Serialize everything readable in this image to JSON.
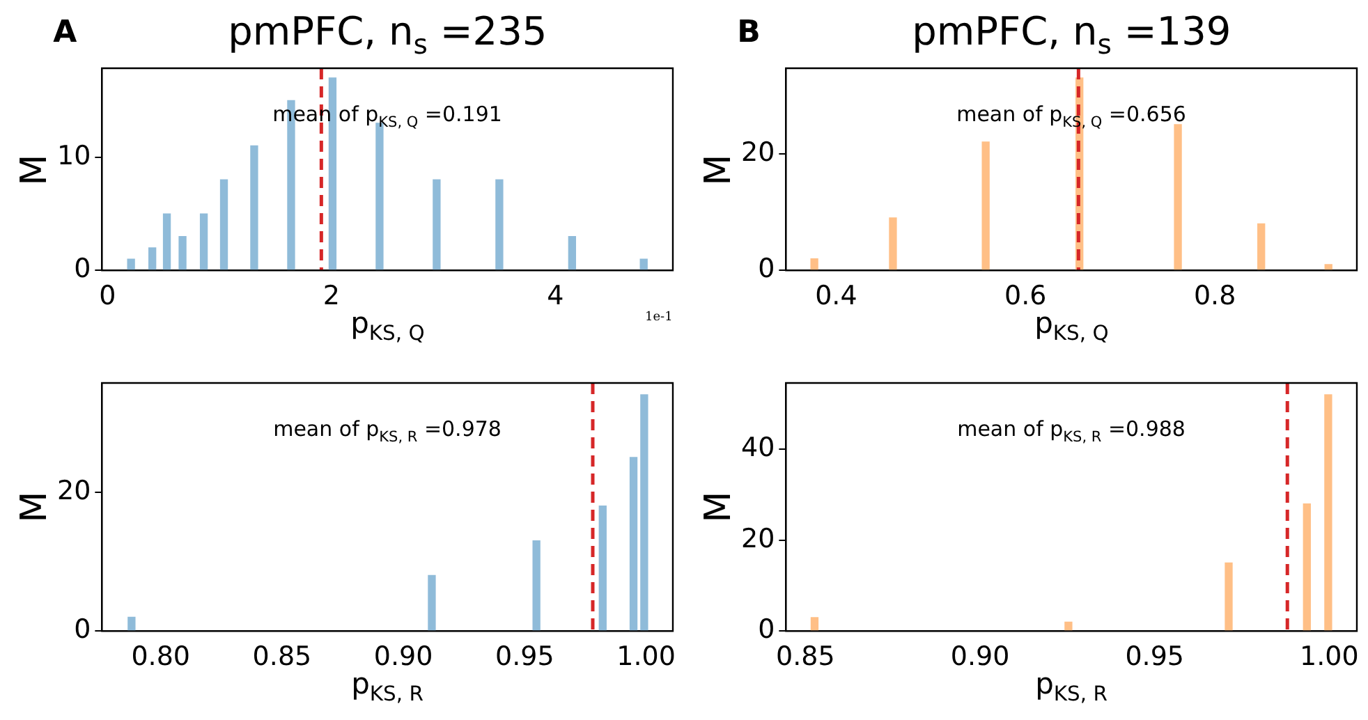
{
  "chart_data": [
    {
      "type": "bar",
      "title": "pmPFC, n$_{s}$ =235",
      "xlabel": "p$_{KS, Q}$",
      "ylabel": "M",
      "annotations": [
        "mean of p$_{KS, Q}$ =0.191",
        "A",
        "1e-1"
      ],
      "x": [
        0.21,
        0.4,
        0.53,
        0.67,
        0.86,
        1.04,
        1.31,
        1.64,
        2.01,
        2.43,
        2.94,
        3.5,
        4.15,
        4.79
      ],
      "values": [
        1,
        2,
        5,
        3,
        5,
        8,
        11,
        15,
        17,
        13,
        8,
        8,
        3,
        1
      ],
      "color": "#8fbbd9",
      "xlim": [
        -0.05,
        5.05
      ],
      "xticks": [
        0,
        2,
        4
      ],
      "ylim": [
        0,
        17.85
      ],
      "yticks": [
        0,
        10
      ],
      "ref_lines": [
        {
          "axis": "x",
          "value": 1.91,
          "color": "#d62728",
          "line_style": "dashed"
        }
      ]
    },
    {
      "type": "bar",
      "title": "pmPFC, n$_{s}$ =139",
      "xlabel": "p$_{KS, Q}$",
      "ylabel": "M",
      "annotations": [
        "mean of p$_{KS, Q}$ =0.656",
        "B"
      ],
      "x": [
        0.377,
        0.46,
        0.558,
        0.657,
        0.761,
        0.849,
        0.92
      ],
      "values": [
        2,
        9,
        22,
        33,
        25,
        8,
        1
      ],
      "color": "#ffbf86",
      "xlim": [
        0.347,
        0.95
      ],
      "xticks": [
        0.4,
        0.6,
        0.8
      ],
      "ylim": [
        0,
        34.65
      ],
      "yticks": [
        0,
        20
      ],
      "ref_lines": [
        {
          "axis": "x",
          "value": 0.656,
          "color": "#d62728",
          "line_style": "dashed"
        }
      ]
    },
    {
      "type": "bar",
      "xlabel": "p$_{KS, R}$",
      "ylabel": "M",
      "annotations": [
        "mean of p$_{KS, R}$ =0.978"
      ],
      "x": [
        0.788,
        0.9117,
        0.9548,
        0.9821,
        0.9948,
        0.9992
      ],
      "values": [
        2,
        8,
        13,
        18,
        25,
        34
      ],
      "color": "#8fbbd9",
      "xlim": [
        0.7758,
        1.011
      ],
      "xticks": [
        {
          "value": 0.8,
          "label": "0.80"
        },
        0.85,
        {
          "value": 0.9,
          "label": "0.90"
        },
        0.95,
        {
          "value": 1,
          "label": "1.00"
        }
      ],
      "ylim": [
        0,
        35.7
      ],
      "yticks": [
        0,
        20
      ],
      "ref_lines": [
        {
          "axis": "x",
          "value": 0.978,
          "color": "#d62728",
          "line_style": "dashed"
        }
      ]
    },
    {
      "type": "bar",
      "xlabel": "p$_{KS, R}$",
      "ylabel": "M",
      "annotations": [
        "mean of p$_{KS, R}$ =0.988"
      ],
      "x": [
        0.8526,
        0.9253,
        0.9712,
        0.9936,
        0.9997
      ],
      "values": [
        3,
        2,
        15,
        28,
        52
      ],
      "color": "#ffbf86",
      "xlim": [
        0.8444,
        1.0079
      ],
      "xticks": [
        0.85,
        {
          "value": 0.9,
          "label": "0.90"
        },
        0.95,
        {
          "value": 1,
          "label": "1.00"
        }
      ],
      "ylim": [
        0,
        54.6
      ],
      "yticks": [
        0,
        20,
        40
      ],
      "ref_lines": [
        {
          "axis": "x",
          "value": 0.988,
          "color": "#d62728",
          "line_style": "dashed"
        }
      ]
    }
  ]
}
